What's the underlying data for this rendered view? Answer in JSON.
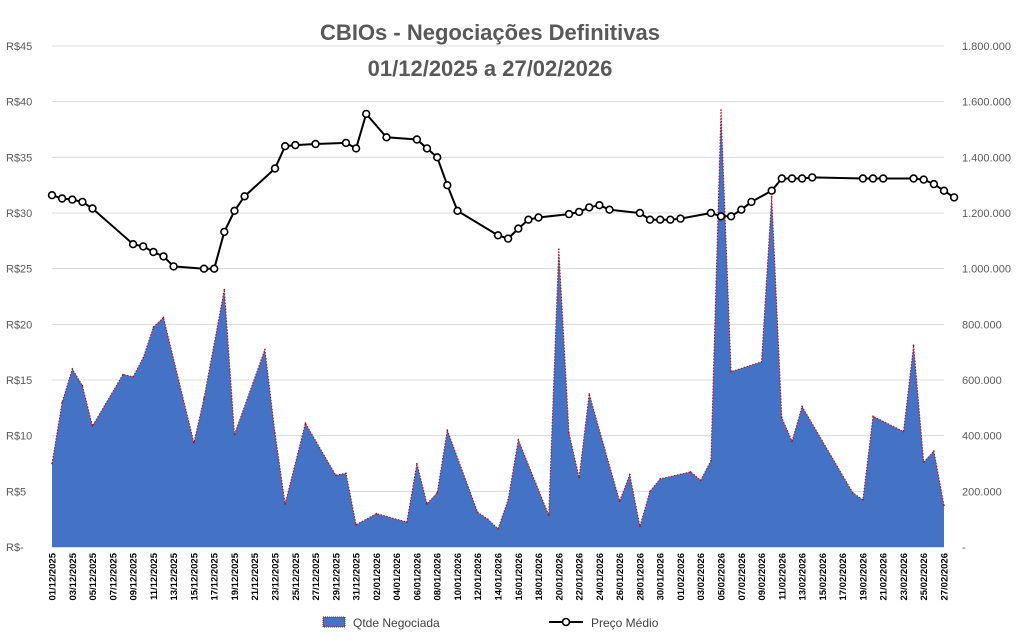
{
  "chart_data": {
    "title": "CBIOs - Negociações Definitivas",
    "subtitle": "01/12/2025 a 27/02/2026",
    "type": "area+line",
    "y_left": {
      "ylim": [
        0,
        45
      ],
      "ticks": [
        "R$-",
        "R$5",
        "R$10",
        "R$15",
        "R$20",
        "R$25",
        "R$30",
        "R$35",
        "R$40",
        "R$45"
      ]
    },
    "y_right": {
      "ylim": [
        0,
        1800000
      ],
      "ticks": [
        "-",
        "200.000",
        "400.000",
        "600.000",
        "800.000",
        "1.000.000",
        "1.200.000",
        "1.400.000",
        "1.600.000",
        "1.800.000"
      ]
    },
    "x_range": [
      "01/12/2025",
      "27/02/2026"
    ],
    "x_tick_labels": [
      "01/12/2025",
      "03/12/2025",
      "05/12/2025",
      "07/12/2025",
      "09/12/2025",
      "11/12/2025",
      "13/12/2025",
      "15/12/2025",
      "17/12/2025",
      "19/12/2025",
      "21/12/2025",
      "23/12/2025",
      "25/12/2025",
      "27/12/2025",
      "29/12/2025",
      "31/12/2025",
      "02/01/2026",
      "04/01/2026",
      "06/01/2026",
      "08/01/2026",
      "10/01/2026",
      "12/01/2026",
      "14/01/2026",
      "16/01/2026",
      "18/01/2026",
      "20/01/2026",
      "22/01/2026",
      "24/01/2026",
      "26/01/2026",
      "28/01/2026",
      "30/01/2026",
      "01/02/2026",
      "03/02/2026",
      "05/02/2026",
      "07/02/2026",
      "09/02/2026",
      "11/02/2026",
      "13/02/2026",
      "15/02/2026",
      "17/02/2026",
      "19/02/2026",
      "21/02/2026",
      "23/02/2026",
      "25/02/2026",
      "27/02/2026"
    ],
    "grid": true,
    "legend_position": "bottom",
    "series": [
      {
        "name": "Qtde Negociada",
        "type": "area",
        "axis": "right",
        "color": "#4472C4",
        "edge_color": "#C00000",
        "points": [
          [
            "01/12/2025",
            300000
          ],
          [
            "02/12/2025",
            520000
          ],
          [
            "03/12/2025",
            640000
          ],
          [
            "04/12/2025",
            580000
          ],
          [
            "05/12/2025",
            435000
          ],
          [
            "08/12/2025",
            620000
          ],
          [
            "09/12/2025",
            612000
          ],
          [
            "10/12/2025",
            680000
          ],
          [
            "11/12/2025",
            790000
          ],
          [
            "12/12/2025",
            825000
          ],
          [
            "15/12/2025",
            375000
          ],
          [
            "16/12/2025",
            535000
          ],
          [
            "18/12/2025",
            925000
          ],
          [
            "19/12/2025",
            405000
          ],
          [
            "22/12/2025",
            710000
          ],
          [
            "23/12/2025",
            410000
          ],
          [
            "24/12/2025",
            155000
          ],
          [
            "26/12/2025",
            445000
          ],
          [
            "29/12/2025",
            258000
          ],
          [
            "30/12/2025",
            265000
          ],
          [
            "31/12/2025",
            80000
          ],
          [
            "02/01/2026",
            120000
          ],
          [
            "05/01/2026",
            90000
          ],
          [
            "06/01/2026",
            300000
          ],
          [
            "07/01/2026",
            155000
          ],
          [
            "08/01/2026",
            195000
          ],
          [
            "09/01/2026",
            420000
          ],
          [
            "12/01/2026",
            125000
          ],
          [
            "13/01/2026",
            100000
          ],
          [
            "14/01/2026",
            65000
          ],
          [
            "15/01/2026",
            170000
          ],
          [
            "16/01/2026",
            385000
          ],
          [
            "19/01/2026",
            115000
          ],
          [
            "20/01/2026",
            1070000
          ],
          [
            "21/01/2026",
            410000
          ],
          [
            "22/01/2026",
            250000
          ],
          [
            "23/01/2026",
            550000
          ],
          [
            "26/01/2026",
            165000
          ],
          [
            "27/01/2026",
            260000
          ],
          [
            "28/01/2026",
            75000
          ],
          [
            "29/01/2026",
            200000
          ],
          [
            "30/01/2026",
            245000
          ],
          [
            "02/02/2026",
            270000
          ],
          [
            "03/02/2026",
            240000
          ],
          [
            "04/02/2026",
            310000
          ],
          [
            "05/02/2026",
            1570000
          ],
          [
            "06/02/2026",
            630000
          ],
          [
            "09/02/2026",
            665000
          ],
          [
            "10/02/2026",
            1260000
          ],
          [
            "11/02/2026",
            465000
          ],
          [
            "12/02/2026",
            380000
          ],
          [
            "13/02/2026",
            505000
          ],
          [
            "18/02/2026",
            195000
          ],
          [
            "19/02/2026",
            170000
          ],
          [
            "20/02/2026",
            470000
          ],
          [
            "23/02/2026",
            415000
          ],
          [
            "24/02/2026",
            725000
          ],
          [
            "25/02/2026",
            305000
          ],
          [
            "26/02/2026",
            345000
          ],
          [
            "27/02/2026",
            150000
          ]
        ]
      },
      {
        "name": "Preço Médio",
        "type": "line",
        "axis": "left",
        "color": "#000000",
        "points": [
          [
            "01/12/2025",
            31.6
          ],
          [
            "02/12/2025",
            31.3
          ],
          [
            "03/12/2025",
            31.2
          ],
          [
            "04/12/2025",
            31.0
          ],
          [
            "05/12/2025",
            30.4
          ],
          [
            "09/12/2025",
            27.2
          ],
          [
            "10/12/2025",
            27.0
          ],
          [
            "11/12/2025",
            26.5
          ],
          [
            "12/12/2025",
            26.1
          ],
          [
            "13/12/2025",
            25.2
          ],
          [
            "16/12/2025",
            25.0
          ],
          [
            "17/12/2025",
            25.0
          ],
          [
            "18/12/2025",
            28.3
          ],
          [
            "19/12/2025",
            30.2
          ],
          [
            "20/12/2025",
            31.5
          ],
          [
            "23/12/2025",
            34.0
          ],
          [
            "24/12/2025",
            36.0
          ],
          [
            "25/12/2025",
            36.1
          ],
          [
            "27/12/2025",
            36.2
          ],
          [
            "30/12/2025",
            36.3
          ],
          [
            "31/12/2025",
            35.8
          ],
          [
            "01/01/2026",
            38.9
          ],
          [
            "03/01/2026",
            36.8
          ],
          [
            "06/01/2026",
            36.6
          ],
          [
            "07/01/2026",
            35.8
          ],
          [
            "08/01/2026",
            35.0
          ],
          [
            "09/01/2026",
            32.5
          ],
          [
            "10/01/2026",
            30.2
          ],
          [
            "14/01/2026",
            28.0
          ],
          [
            "15/01/2026",
            27.7
          ],
          [
            "16/01/2026",
            28.6
          ],
          [
            "17/01/2026",
            29.4
          ],
          [
            "18/01/2026",
            29.6
          ],
          [
            "21/01/2026",
            29.9
          ],
          [
            "22/01/2026",
            30.1
          ],
          [
            "23/01/2026",
            30.5
          ],
          [
            "24/01/2026",
            30.7
          ],
          [
            "25/01/2026",
            30.3
          ],
          [
            "28/01/2026",
            30.0
          ],
          [
            "29/01/2026",
            29.4
          ],
          [
            "30/01/2026",
            29.4
          ],
          [
            "31/01/2026",
            29.4
          ],
          [
            "01/02/2026",
            29.5
          ],
          [
            "04/02/2026",
            30.0
          ],
          [
            "05/02/2026",
            29.7
          ],
          [
            "06/02/2026",
            29.7
          ],
          [
            "07/02/2026",
            30.3
          ],
          [
            "08/02/2026",
            31.0
          ],
          [
            "10/02/2026",
            32.0
          ],
          [
            "11/02/2026",
            33.1
          ],
          [
            "12/02/2026",
            33.1
          ],
          [
            "13/02/2026",
            33.1
          ],
          [
            "14/02/2026",
            33.2
          ],
          [
            "19/02/2026",
            33.1
          ],
          [
            "20/02/2026",
            33.1
          ],
          [
            "21/02/2026",
            33.1
          ],
          [
            "24/02/2026",
            33.1
          ],
          [
            "25/02/2026",
            33.0
          ],
          [
            "26/02/2026",
            32.6
          ],
          [
            "27/02/2026",
            32.0
          ],
          [
            "28/02/2026",
            31.4
          ]
        ]
      }
    ]
  }
}
